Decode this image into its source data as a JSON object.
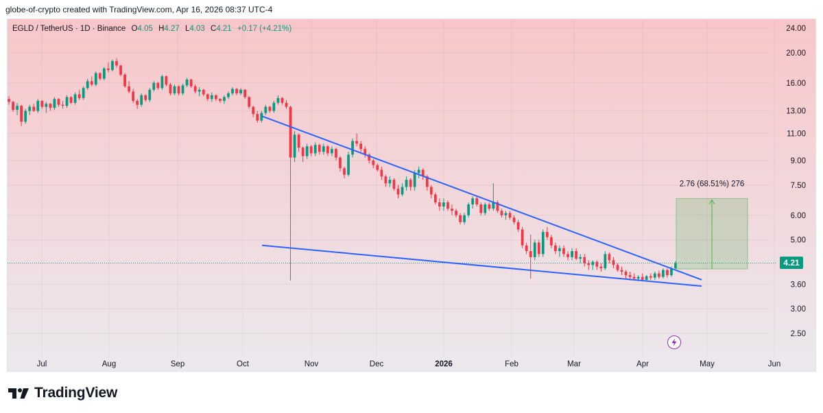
{
  "header": {
    "attribution": "globe-of-crypto created with TradingView.com, Apr 16, 2026 08:37 UTC-4"
  },
  "legend": {
    "symbol": "EGLD / TetherUS · 1D · Binance",
    "open_label": "O",
    "open": "4.05",
    "high_label": "H",
    "high": "4.27",
    "low_label": "L",
    "low": "4.03",
    "close_label": "C",
    "close": "4.21",
    "change": "+0.17 (+4.21%)"
  },
  "current_price": "4.21",
  "measure_label": "2.76 (68.51%) 276",
  "footer": {
    "brand": "TradingView"
  },
  "colors": {
    "up": "#089981",
    "down": "#f23645",
    "trendline": "#2962ff",
    "measure": "#4caf50",
    "bg_top": "#f8c6c8",
    "bg_bottom": "#ebe9ee"
  },
  "icons": {
    "lightning": "lightning-icon",
    "logo": "tradingview-logo-icon"
  },
  "chart_data": {
    "type": "candlestick",
    "scale": "log",
    "title": "EGLD / TetherUS · 1D · Binance",
    "y_ticks": [
      24.0,
      20.0,
      16.0,
      13.0,
      11.0,
      9.0,
      7.5,
      6.0,
      5.0,
      3.6,
      3.0,
      2.5
    ],
    "x_ticks": [
      "Jul",
      "Aug",
      "Sep",
      "Oct",
      "Nov",
      "Dec",
      "2026",
      "Feb",
      "Mar",
      "Apr",
      "May",
      "Jun"
    ],
    "x_ticks_bold": [
      "2026"
    ],
    "ylim": [
      2.2,
      26.5
    ],
    "series": [
      {
        "candles_ohlc_approx": [
          [
            14.2,
            14.5,
            13.6,
            13.9
          ],
          [
            13.9,
            14.0,
            12.9,
            13.1
          ],
          [
            13.1,
            13.8,
            12.6,
            13.5
          ],
          [
            13.5,
            13.6,
            11.6,
            12.0
          ],
          [
            12.0,
            13.2,
            11.8,
            13.0
          ],
          [
            13.0,
            13.6,
            12.6,
            13.4
          ],
          [
            13.4,
            13.7,
            12.9,
            13.0
          ],
          [
            13.0,
            14.2,
            12.8,
            14.0
          ],
          [
            14.0,
            14.1,
            13.2,
            13.4
          ],
          [
            13.4,
            13.9,
            12.8,
            13.7
          ],
          [
            13.7,
            13.8,
            13.0,
            13.3
          ],
          [
            13.3,
            14.4,
            13.1,
            14.2
          ],
          [
            14.2,
            14.3,
            13.4,
            13.6
          ],
          [
            13.6,
            14.0,
            13.2,
            13.5
          ],
          [
            13.5,
            14.6,
            13.3,
            14.4
          ],
          [
            14.4,
            14.5,
            13.7,
            13.8
          ],
          [
            13.8,
            14.9,
            13.6,
            14.7
          ],
          [
            14.7,
            15.2,
            14.1,
            14.3
          ],
          [
            14.3,
            15.6,
            14.1,
            15.4
          ],
          [
            15.4,
            16.5,
            15.2,
            16.2
          ],
          [
            16.2,
            16.8,
            15.6,
            15.8
          ],
          [
            15.8,
            17.4,
            15.6,
            17.2
          ],
          [
            17.2,
            17.3,
            16.3,
            16.5
          ],
          [
            16.5,
            18.0,
            16.3,
            17.8
          ],
          [
            17.8,
            18.6,
            17.3,
            17.6
          ],
          [
            17.6,
            19.0,
            17.4,
            18.8
          ],
          [
            18.8,
            19.2,
            17.9,
            18.2
          ],
          [
            18.2,
            18.3,
            16.8,
            17.0
          ],
          [
            17.0,
            17.2,
            15.4,
            15.6
          ],
          [
            15.6,
            16.2,
            14.8,
            15.0
          ],
          [
            15.0,
            15.3,
            13.8,
            14.0
          ],
          [
            14.0,
            14.2,
            13.2,
            13.6
          ],
          [
            13.6,
            14.8,
            13.4,
            14.6
          ],
          [
            14.6,
            14.7,
            13.9,
            14.1
          ],
          [
            14.1,
            15.4,
            13.9,
            15.2
          ],
          [
            15.2,
            16.2,
            15.0,
            16.0
          ],
          [
            16.0,
            16.1,
            15.2,
            15.4
          ],
          [
            15.4,
            17.0,
            15.2,
            16.8
          ],
          [
            16.8,
            16.9,
            15.6,
            15.8
          ],
          [
            15.8,
            16.0,
            14.6,
            14.8
          ],
          [
            14.8,
            15.8,
            14.6,
            15.6
          ],
          [
            15.6,
            15.7,
            14.6,
            14.8
          ],
          [
            14.8,
            15.9,
            14.6,
            15.7
          ],
          [
            15.7,
            16.6,
            15.5,
            16.4
          ],
          [
            16.4,
            16.5,
            15.4,
            15.6
          ],
          [
            15.6,
            15.8,
            14.8,
            15.0
          ],
          [
            15.0,
            15.5,
            14.5,
            15.2
          ],
          [
            15.2,
            15.3,
            14.5,
            14.7
          ],
          [
            14.7,
            14.8,
            14.0,
            14.2
          ],
          [
            14.2,
            14.9,
            13.9,
            14.6
          ],
          [
            14.6,
            14.7,
            14.0,
            14.2
          ],
          [
            14.2,
            14.3,
            13.8,
            14.0
          ],
          [
            14.0,
            14.6,
            13.7,
            14.4
          ],
          [
            14.4,
            15.0,
            14.2,
            14.8
          ],
          [
            14.8,
            15.5,
            14.6,
            15.3
          ],
          [
            15.3,
            15.4,
            14.6,
            14.8
          ],
          [
            14.8,
            15.4,
            14.6,
            15.2
          ],
          [
            15.2,
            15.3,
            14.2,
            14.4
          ],
          [
            14.4,
            14.5,
            13.2,
            13.4
          ],
          [
            13.4,
            13.5,
            12.4,
            12.7
          ],
          [
            12.7,
            13.0,
            11.9,
            12.1
          ],
          [
            12.1,
            13.0,
            11.9,
            12.8
          ],
          [
            12.8,
            13.6,
            12.6,
            13.4
          ],
          [
            13.4,
            13.5,
            12.8,
            13.0
          ],
          [
            13.0,
            14.0,
            12.8,
            13.8
          ],
          [
            13.8,
            14.6,
            13.6,
            14.3
          ],
          [
            14.3,
            14.4,
            13.6,
            13.8
          ],
          [
            13.8,
            14.1,
            13.2,
            13.4
          ],
          [
            13.4,
            13.5,
            3.7,
            9.2
          ],
          [
            9.2,
            11.2,
            8.9,
            10.9
          ],
          [
            10.9,
            11.0,
            9.6,
            9.9
          ],
          [
            9.9,
            10.0,
            8.9,
            9.3
          ],
          [
            9.3,
            10.2,
            9.1,
            10.0
          ],
          [
            10.0,
            10.1,
            9.3,
            9.5
          ],
          [
            9.5,
            10.3,
            9.3,
            10.1
          ],
          [
            10.1,
            10.2,
            9.4,
            9.6
          ],
          [
            9.6,
            10.2,
            9.4,
            10.0
          ],
          [
            10.0,
            10.1,
            9.3,
            9.5
          ],
          [
            9.5,
            10.0,
            9.3,
            9.8
          ],
          [
            9.8,
            9.9,
            9.0,
            9.2
          ],
          [
            9.2,
            9.3,
            8.3,
            8.5
          ],
          [
            8.5,
            8.6,
            7.9,
            8.1
          ],
          [
            8.1,
            9.6,
            8.0,
            9.4
          ],
          [
            9.4,
            10.6,
            9.2,
            10.4
          ],
          [
            10.4,
            11.0,
            10.0,
            10.2
          ],
          [
            10.2,
            10.4,
            9.6,
            9.8
          ],
          [
            9.8,
            10.0,
            9.2,
            9.4
          ],
          [
            9.4,
            9.5,
            8.8,
            9.0
          ],
          [
            9.0,
            9.1,
            8.5,
            8.7
          ],
          [
            8.7,
            8.8,
            8.3,
            8.4
          ],
          [
            8.4,
            8.6,
            7.8,
            8.0
          ],
          [
            8.0,
            8.1,
            7.4,
            7.6
          ],
          [
            7.6,
            8.0,
            7.4,
            7.8
          ],
          [
            7.8,
            7.9,
            7.2,
            7.3
          ],
          [
            7.3,
            7.5,
            6.8,
            7.0
          ],
          [
            7.0,
            7.6,
            6.9,
            7.4
          ],
          [
            7.4,
            8.0,
            7.2,
            7.8
          ],
          [
            7.8,
            7.9,
            7.2,
            7.4
          ],
          [
            7.4,
            8.4,
            7.2,
            8.2
          ],
          [
            8.2,
            8.6,
            7.9,
            8.4
          ],
          [
            8.4,
            8.5,
            7.8,
            8.0
          ],
          [
            8.0,
            8.1,
            7.2,
            7.4
          ],
          [
            7.4,
            7.5,
            6.8,
            7.0
          ],
          [
            7.0,
            7.1,
            6.5,
            6.6
          ],
          [
            6.6,
            6.8,
            6.2,
            6.4
          ],
          [
            6.4,
            6.8,
            6.2,
            6.6
          ],
          [
            6.6,
            6.7,
            6.2,
            6.3
          ],
          [
            6.3,
            6.5,
            6.0,
            6.2
          ],
          [
            6.2,
            6.3,
            5.9,
            6.0
          ],
          [
            6.0,
            6.1,
            5.6,
            5.7
          ],
          [
            5.7,
            6.1,
            5.6,
            6.0
          ],
          [
            6.0,
            6.6,
            5.9,
            6.5
          ],
          [
            6.5,
            6.9,
            6.3,
            6.8
          ],
          [
            6.8,
            6.9,
            6.4,
            6.5
          ],
          [
            6.5,
            6.6,
            6.0,
            6.1
          ],
          [
            6.1,
            6.6,
            6.0,
            6.5
          ],
          [
            6.5,
            6.6,
            6.2,
            6.3
          ],
          [
            6.3,
            7.6,
            6.2,
            6.6
          ],
          [
            6.6,
            6.7,
            6.1,
            6.2
          ],
          [
            6.2,
            6.3,
            5.9,
            6.0
          ],
          [
            6.0,
            6.2,
            5.8,
            6.1
          ],
          [
            6.1,
            6.2,
            5.8,
            5.9
          ],
          [
            5.9,
            6.0,
            5.6,
            5.7
          ],
          [
            5.7,
            5.8,
            5.3,
            5.4
          ],
          [
            5.4,
            5.5,
            4.7,
            4.8
          ],
          [
            4.8,
            4.9,
            4.5,
            4.6
          ],
          [
            4.6,
            5.2,
            3.75,
            4.4
          ],
          [
            4.4,
            5.0,
            4.3,
            4.9
          ],
          [
            4.9,
            5.0,
            4.4,
            4.5
          ],
          [
            4.5,
            5.4,
            4.4,
            5.3
          ],
          [
            5.3,
            5.5,
            5.0,
            5.1
          ],
          [
            5.1,
            5.2,
            4.7,
            4.8
          ],
          [
            4.8,
            4.9,
            4.5,
            4.6
          ],
          [
            4.6,
            4.8,
            4.4,
            4.7
          ],
          [
            4.7,
            4.8,
            4.4,
            4.5
          ],
          [
            4.5,
            4.6,
            4.3,
            4.4
          ],
          [
            4.4,
            4.7,
            4.3,
            4.6
          ],
          [
            4.6,
            4.7,
            4.3,
            4.35
          ],
          [
            4.35,
            4.5,
            4.2,
            4.4
          ],
          [
            4.4,
            4.5,
            4.1,
            4.2
          ],
          [
            4.2,
            4.3,
            4.0,
            4.15
          ],
          [
            4.15,
            4.3,
            4.0,
            4.25
          ],
          [
            4.25,
            4.3,
            4.0,
            4.1
          ],
          [
            4.1,
            4.2,
            3.95,
            4.05
          ],
          [
            4.05,
            4.6,
            4.0,
            4.5
          ],
          [
            4.5,
            4.55,
            4.2,
            4.3
          ],
          [
            4.3,
            4.4,
            4.05,
            4.15
          ],
          [
            4.15,
            4.2,
            3.95,
            4.0
          ],
          [
            4.0,
            4.1,
            3.85,
            3.95
          ],
          [
            3.95,
            4.0,
            3.75,
            3.85
          ],
          [
            3.85,
            3.95,
            3.7,
            3.8
          ],
          [
            3.8,
            3.9,
            3.7,
            3.75
          ],
          [
            3.75,
            3.85,
            3.68,
            3.8
          ],
          [
            3.8,
            3.9,
            3.7,
            3.72
          ],
          [
            3.72,
            3.85,
            3.68,
            3.82
          ],
          [
            3.82,
            3.9,
            3.72,
            3.78
          ],
          [
            3.78,
            3.95,
            3.72,
            3.9
          ],
          [
            3.9,
            3.98,
            3.75,
            3.8
          ],
          [
            3.8,
            4.05,
            3.76,
            4.0
          ],
          [
            4.0,
            4.05,
            3.78,
            3.85
          ],
          [
            3.85,
            4.1,
            3.8,
            4.04
          ],
          [
            4.05,
            4.27,
            4.03,
            4.21
          ]
        ]
      }
    ],
    "annotations": [
      {
        "type": "trendline",
        "from": [
          "Oct (day 10)",
          12.5
        ],
        "to": [
          "Apr (day 25)",
          3.72
        ]
      },
      {
        "type": "trendline",
        "from": [
          "Oct (day 10)",
          4.8
        ],
        "to": [
          "Apr (day 25)",
          3.55
        ]
      },
      {
        "type": "price-range",
        "from": 4.03,
        "to": 6.79,
        "label": "2.76 (68.51%) 276"
      }
    ],
    "grid": true
  }
}
